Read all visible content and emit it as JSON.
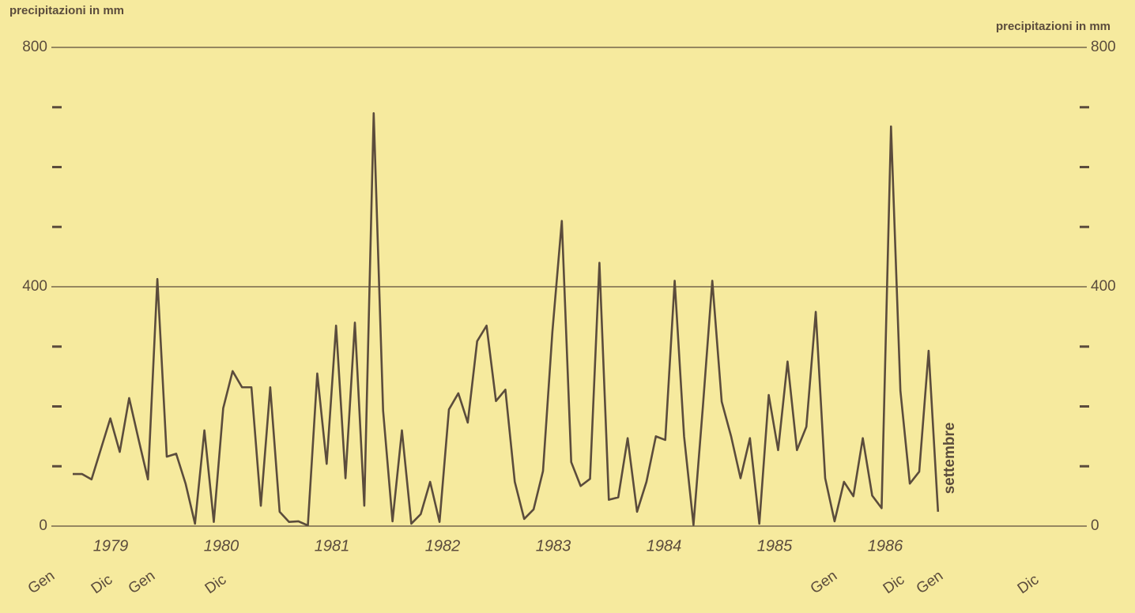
{
  "chart_data": {
    "type": "line",
    "y_label": "precipitazioni in mm",
    "y2_label": "precipitazioni in mm",
    "categories": [
      null,
      null,
      null,
      null,
      null,
      null,
      null,
      null,
      null,
      null,
      null,
      null,
      null,
      null,
      null,
      null,
      null,
      null,
      null,
      null,
      null,
      null,
      null,
      null,
      null,
      null,
      null,
      null,
      null,
      null,
      null,
      null,
      null,
      null,
      null,
      null,
      null,
      null,
      null,
      null,
      null,
      null,
      null,
      null,
      null,
      null,
      null,
      null,
      null,
      null,
      null,
      null,
      null,
      null,
      null,
      null,
      null,
      null,
      null,
      null,
      null,
      null,
      null,
      null,
      null,
      null,
      null,
      null,
      null,
      null,
      null,
      null,
      null,
      null,
      null,
      null,
      null,
      null,
      null,
      null,
      null,
      null,
      null,
      null,
      null,
      null,
      null,
      null,
      null,
      null,
      null,
      null,
      null
    ],
    "series": [
      {
        "name": null,
        "color": "#5b4c3c",
        "values": [
          87,
          87,
          78,
          129,
          180,
          124,
          214,
          145,
          78,
          413,
          116,
          121,
          71,
          4,
          160,
          7,
          197,
          259,
          232,
          232,
          34,
          232,
          24,
          7,
          8,
          1,
          255,
          104,
          335,
          80,
          340,
          34,
          690,
          193,
          8,
          160,
          4,
          20,
          74,
          7,
          195,
          222,
          173,
          309,
          335,
          209,
          228,
          74,
          12,
          28,
          92,
          325,
          510,
          107,
          67,
          79,
          440,
          44,
          48,
          147,
          24,
          74,
          150,
          144,
          410,
          150,
          2,
          200,
          410,
          208,
          150,
          80,
          147,
          4,
          219,
          127,
          275,
          127,
          166,
          358,
          80,
          8,
          74,
          50,
          147,
          51,
          30,
          668,
          226,
          71,
          91,
          293,
          24
        ]
      }
    ],
    "year_labels": [
      "1979",
      "1980",
      "1981",
      "1982",
      "1983",
      "1984",
      "1985",
      "1986"
    ],
    "month_labels": [
      "Gen",
      "Dic",
      "Gen",
      "Dic",
      "Gen",
      "Dic",
      "Gen",
      "Dic"
    ],
    "annotation": "settembre",
    "ylim": [
      0,
      800
    ],
    "yticks": [
      0,
      400,
      800
    ],
    "yminor": [
      100,
      200,
      300,
      500,
      600,
      700
    ],
    "y2lim": [
      0,
      800
    ],
    "y2ticks": [
      0,
      400,
      800
    ],
    "y2minor": [
      100,
      200,
      300,
      500,
      600,
      700
    ],
    "grid": true
  }
}
